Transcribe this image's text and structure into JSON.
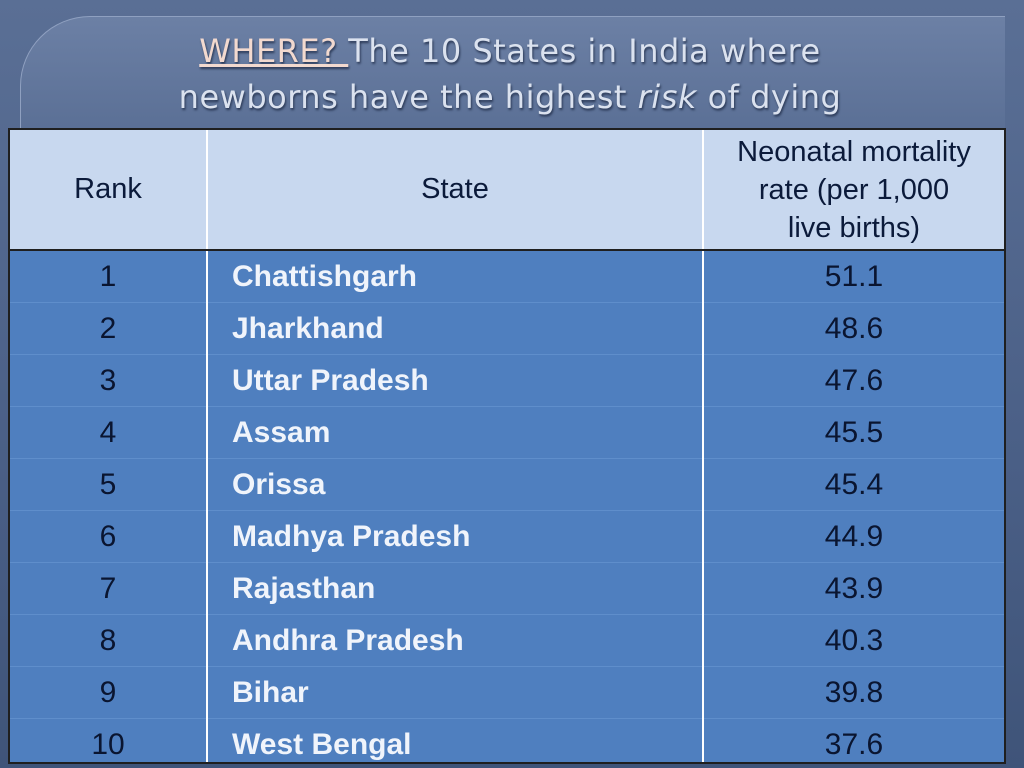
{
  "title": {
    "prefix": "WHERE? ",
    "line1_rest": "The 10  States in India  where",
    "line2_start": "newborns have the highest ",
    "line2_italic": "risk",
    "line2_end": " of dying"
  },
  "table": {
    "headers": {
      "rank": "Rank",
      "state": "State",
      "rate_line1": "Neonatal mortality",
      "rate_line2": "rate (per 1,000",
      "rate_line3": "live births)"
    },
    "rows": [
      {
        "rank": "1",
        "state": "Chattishgarh",
        "rate": "51.1"
      },
      {
        "rank": "2",
        "state": "Jharkhand",
        "rate": "48.6"
      },
      {
        "rank": "3",
        "state": "Uttar Pradesh",
        "rate": "47.6"
      },
      {
        "rank": "4",
        "state": "Assam",
        "rate": "45.5"
      },
      {
        "rank": "5",
        "state": "Orissa",
        "rate": "45.4"
      },
      {
        "rank": "6",
        "state": "Madhya Pradesh",
        "rate": "44.9"
      },
      {
        "rank": "7",
        "state": "Rajasthan",
        "rate": "43.9"
      },
      {
        "rank": "8",
        "state": "Andhra Pradesh",
        "rate": "40.3"
      },
      {
        "rank": "9",
        "state": "Bihar",
        "rate": "39.8"
      },
      {
        "rank": "10",
        "state": "West Bengal",
        "rate": "37.6"
      }
    ]
  },
  "colors": {
    "header_bg": "#c8d8ef",
    "row_bg": "#4f7fbf",
    "slide_bg": "#4a5f86"
  }
}
